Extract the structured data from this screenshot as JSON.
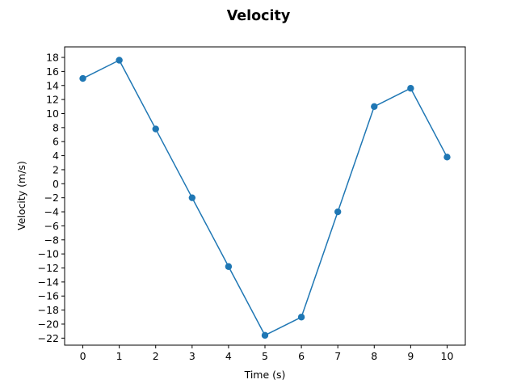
{
  "chart_data": {
    "type": "line",
    "title": "Velocity",
    "xlabel": "Time (s)",
    "ylabel": "Velocity (m/s)",
    "x": [
      0,
      1,
      2,
      3,
      4,
      5,
      6,
      7,
      8,
      9,
      10
    ],
    "series": [
      {
        "values": [
          15.0,
          17.6,
          7.8,
          -2.0,
          -11.8,
          -21.6,
          -19.0,
          -4.0,
          11.0,
          13.6,
          3.8
        ],
        "color": "#1f77b4",
        "marker": "circle"
      }
    ],
    "xlim": [
      -0.5,
      10.5
    ],
    "ylim": [
      -23.0,
      19.5
    ],
    "xticks": [
      0,
      1,
      2,
      3,
      4,
      5,
      6,
      7,
      8,
      9,
      10
    ],
    "yticks": [
      18,
      16,
      14,
      12,
      10,
      8,
      6,
      4,
      2,
      0,
      -2,
      -4,
      -6,
      -8,
      -10,
      -12,
      -14,
      -16,
      -18,
      -20,
      -22
    ],
    "xtick_labels": [
      "0",
      "1",
      "2",
      "3",
      "4",
      "5",
      "6",
      "7",
      "8",
      "9",
      "10"
    ],
    "ytick_labels": [
      "18",
      "16",
      "14",
      "12",
      "10",
      "8",
      "6",
      "4",
      "2",
      "0",
      "−2",
      "−4",
      "−6",
      "−8",
      "−10",
      "−12",
      "−14",
      "−16",
      "−18",
      "−20",
      "−22"
    ],
    "grid": false,
    "legend": "none"
  }
}
